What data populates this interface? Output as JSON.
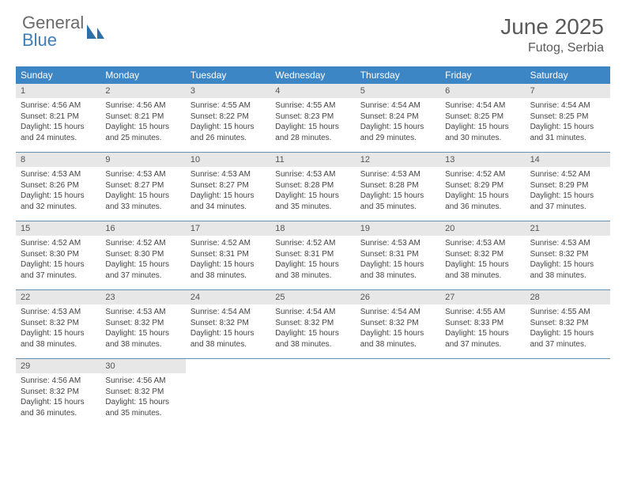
{
  "brand": {
    "word1": "General",
    "word2": "Blue"
  },
  "title": "June 2025",
  "location": "Futog, Serbia",
  "colors": {
    "header_bar": "#3d86c6",
    "daynum_bg": "#e7e7e7",
    "week_border": "#6a8fad",
    "logo_gray": "#6a6a6a",
    "logo_blue": "#3d7fb8"
  },
  "daysOfWeek": [
    "Sunday",
    "Monday",
    "Tuesday",
    "Wednesday",
    "Thursday",
    "Friday",
    "Saturday"
  ],
  "cells": [
    {
      "n": "1",
      "sr": "4:56 AM",
      "ss": "8:21 PM",
      "dl": "15 hours and 24 minutes."
    },
    {
      "n": "2",
      "sr": "4:56 AM",
      "ss": "8:21 PM",
      "dl": "15 hours and 25 minutes."
    },
    {
      "n": "3",
      "sr": "4:55 AM",
      "ss": "8:22 PM",
      "dl": "15 hours and 26 minutes."
    },
    {
      "n": "4",
      "sr": "4:55 AM",
      "ss": "8:23 PM",
      "dl": "15 hours and 28 minutes."
    },
    {
      "n": "5",
      "sr": "4:54 AM",
      "ss": "8:24 PM",
      "dl": "15 hours and 29 minutes."
    },
    {
      "n": "6",
      "sr": "4:54 AM",
      "ss": "8:25 PM",
      "dl": "15 hours and 30 minutes."
    },
    {
      "n": "7",
      "sr": "4:54 AM",
      "ss": "8:25 PM",
      "dl": "15 hours and 31 minutes."
    },
    {
      "n": "8",
      "sr": "4:53 AM",
      "ss": "8:26 PM",
      "dl": "15 hours and 32 minutes."
    },
    {
      "n": "9",
      "sr": "4:53 AM",
      "ss": "8:27 PM",
      "dl": "15 hours and 33 minutes."
    },
    {
      "n": "10",
      "sr": "4:53 AM",
      "ss": "8:27 PM",
      "dl": "15 hours and 34 minutes."
    },
    {
      "n": "11",
      "sr": "4:53 AM",
      "ss": "8:28 PM",
      "dl": "15 hours and 35 minutes."
    },
    {
      "n": "12",
      "sr": "4:53 AM",
      "ss": "8:28 PM",
      "dl": "15 hours and 35 minutes."
    },
    {
      "n": "13",
      "sr": "4:52 AM",
      "ss": "8:29 PM",
      "dl": "15 hours and 36 minutes."
    },
    {
      "n": "14",
      "sr": "4:52 AM",
      "ss": "8:29 PM",
      "dl": "15 hours and 37 minutes."
    },
    {
      "n": "15",
      "sr": "4:52 AM",
      "ss": "8:30 PM",
      "dl": "15 hours and 37 minutes."
    },
    {
      "n": "16",
      "sr": "4:52 AM",
      "ss": "8:30 PM",
      "dl": "15 hours and 37 minutes."
    },
    {
      "n": "17",
      "sr": "4:52 AM",
      "ss": "8:31 PM",
      "dl": "15 hours and 38 minutes."
    },
    {
      "n": "18",
      "sr": "4:52 AM",
      "ss": "8:31 PM",
      "dl": "15 hours and 38 minutes."
    },
    {
      "n": "19",
      "sr": "4:53 AM",
      "ss": "8:31 PM",
      "dl": "15 hours and 38 minutes."
    },
    {
      "n": "20",
      "sr": "4:53 AM",
      "ss": "8:32 PM",
      "dl": "15 hours and 38 minutes."
    },
    {
      "n": "21",
      "sr": "4:53 AM",
      "ss": "8:32 PM",
      "dl": "15 hours and 38 minutes."
    },
    {
      "n": "22",
      "sr": "4:53 AM",
      "ss": "8:32 PM",
      "dl": "15 hours and 38 minutes."
    },
    {
      "n": "23",
      "sr": "4:53 AM",
      "ss": "8:32 PM",
      "dl": "15 hours and 38 minutes."
    },
    {
      "n": "24",
      "sr": "4:54 AM",
      "ss": "8:32 PM",
      "dl": "15 hours and 38 minutes."
    },
    {
      "n": "25",
      "sr": "4:54 AM",
      "ss": "8:32 PM",
      "dl": "15 hours and 38 minutes."
    },
    {
      "n": "26",
      "sr": "4:54 AM",
      "ss": "8:32 PM",
      "dl": "15 hours and 38 minutes."
    },
    {
      "n": "27",
      "sr": "4:55 AM",
      "ss": "8:33 PM",
      "dl": "15 hours and 37 minutes."
    },
    {
      "n": "28",
      "sr": "4:55 AM",
      "ss": "8:32 PM",
      "dl": "15 hours and 37 minutes."
    },
    {
      "n": "29",
      "sr": "4:56 AM",
      "ss": "8:32 PM",
      "dl": "15 hours and 36 minutes."
    },
    {
      "n": "30",
      "sr": "4:56 AM",
      "ss": "8:32 PM",
      "dl": "15 hours and 35 minutes."
    }
  ],
  "labels": {
    "sunrise": "Sunrise:",
    "sunset": "Sunset:",
    "daylight": "Daylight:"
  }
}
